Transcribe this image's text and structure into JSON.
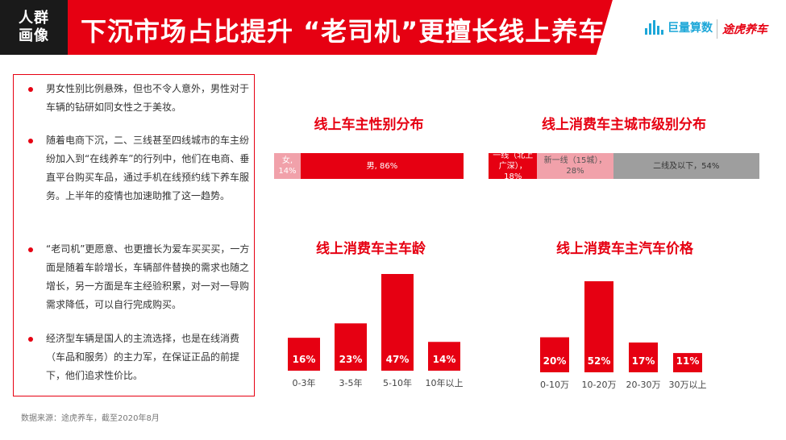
{
  "header": {
    "section_tag_line1": "人群",
    "section_tag_line2": "画像",
    "title": "下沉市场占比提升 “老司机”更擅长线上养车",
    "logo_juliang": "巨量算数",
    "logo_tuhu": "途虎养车",
    "colors": {
      "red": "#e60012",
      "dark": "#1a1a1a",
      "juliang_blue": "#1da7d8"
    }
  },
  "left_panel": {
    "bullets": [
      "男女性别比例悬殊，但也不令人意外，男性对于车辆的钻研如同女性之于美妆。",
      "随着电商下沉，二、三线甚至四线城市的车主纷纷加入到“在线养车”的行列中，他们在电商、垂直平台购买车品，通过手机在线预约线下养车服务。上半年的疫情也加速助推了这一趋势。",
      "“老司机”更愿意、也更擅长为爱车买买买，一方面是随着车龄增长，车辆部件替换的需求也随之增长，另一方面是车主经验积累，对一对一导购需求降低，可以自行完成购买。",
      "经济型车辆是国人的主流选择，也是在线消费（车品和服务）的主力军，在保证正品的前提下，他们追求性价比。"
    ]
  },
  "source": "数据来源：途虎养车，截至2020年8月",
  "chart_data": [
    {
      "type": "bar",
      "orientation": "horizontal-stacked-100",
      "title": "线上车主性别分布",
      "segments": [
        {
          "label": "女, 14%",
          "category": "女",
          "value": 14,
          "color": "#f1a1aa",
          "text_color": "#ffffff"
        },
        {
          "label": "男, 86%",
          "category": "男",
          "value": 86,
          "color": "#e60012",
          "text_color": "#ffffff"
        }
      ]
    },
    {
      "type": "bar",
      "orientation": "horizontal-stacked-100",
      "title": "线上消费车主城市级别分布",
      "segments": [
        {
          "label": "一线（北上广深），18%",
          "category": "一线（北上广深）",
          "value": 18,
          "color": "#e60012",
          "text_color": "#ffffff"
        },
        {
          "label": "新一线（15城），28%",
          "category": "新一线（15城）",
          "value": 28,
          "color": "#f1a1aa",
          "text_color": "#555555"
        },
        {
          "label": "二线及以下，54%",
          "category": "二线及以下",
          "value": 54,
          "color": "#9e9e9e",
          "text_color": "#333333"
        }
      ]
    },
    {
      "type": "bar",
      "title": "线上消费车主车龄",
      "categories": [
        "0-3年",
        "3-5年",
        "5-10年",
        "10年以上"
      ],
      "values": [
        16,
        23,
        47,
        14
      ],
      "value_labels": [
        "16%",
        "23%",
        "47%",
        "14%"
      ],
      "color": "#e60012",
      "ylim": [
        0,
        47
      ],
      "grid": false
    },
    {
      "type": "bar",
      "title": "线上消费车主汽车价格",
      "categories": [
        "0-10万",
        "10-20万",
        "20-30万",
        "30万以上"
      ],
      "values": [
        20,
        52,
        17,
        11
      ],
      "value_labels": [
        "20%",
        "52%",
        "17%",
        "11%"
      ],
      "color": "#e60012",
      "ylim": [
        0,
        52
      ],
      "grid": false
    }
  ]
}
